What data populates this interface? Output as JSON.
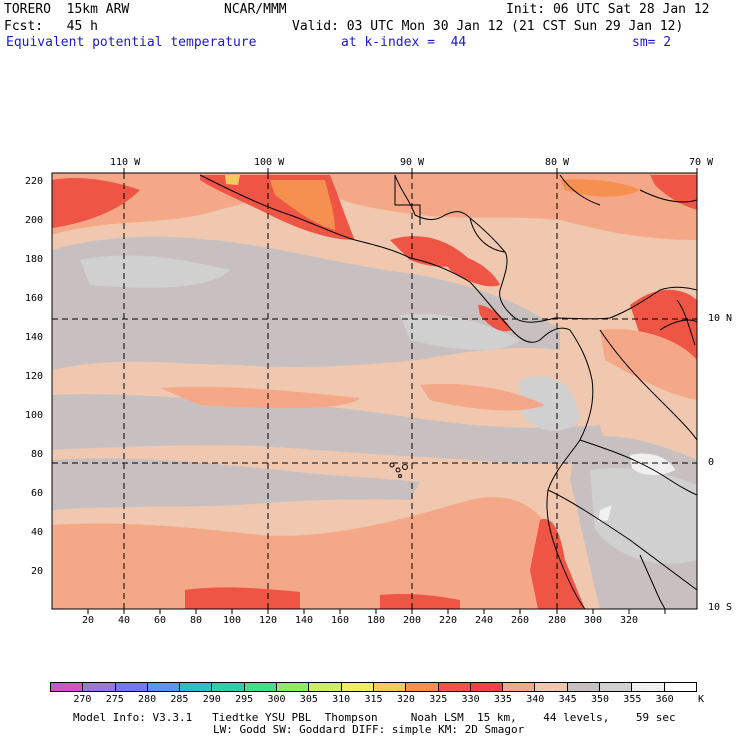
{
  "header": {
    "model": "TORERO  15km ARW",
    "org": "NCAR/MMM",
    "init": "Init: 06 UTC Sat 28 Jan 12",
    "fcst": "Fcst:   45 h",
    "valid": "Valid: 03 UTC Mon 30 Jan 12 (21 CST Sun 29 Jan 12)",
    "field": "Equivalent potential temperature",
    "level": "at k-index =  44",
    "smooth": "sm= 2"
  },
  "map": {
    "lon_labels": [
      "110 W",
      "100 W",
      "90 W",
      "80 W",
      "70 W"
    ],
    "lat_labels": [
      "10 N",
      "0",
      "10 S"
    ],
    "x_ticks": [
      "20",
      "40",
      "60",
      "80",
      "100",
      "120",
      "140",
      "160",
      "180",
      "200",
      "220",
      "240",
      "260",
      "280",
      "300",
      "320"
    ],
    "y_ticks": [
      "220",
      "200",
      "180",
      "160",
      "140",
      "120",
      "100",
      "80",
      "60",
      "40",
      "20"
    ]
  },
  "colorbar": {
    "labels": [
      "270",
      "275",
      "280",
      "285",
      "290",
      "295",
      "300",
      "305",
      "310",
      "315",
      "320",
      "325",
      "330",
      "335",
      "340",
      "345",
      "350",
      "355",
      "360"
    ],
    "unit": "K",
    "colors": [
      "#cc55cc",
      "#9977dd",
      "#7777ee",
      "#5599ee",
      "#33bbcc",
      "#33ccaa",
      "#44dd88",
      "#88ee66",
      "#ccee66",
      "#eeee66",
      "#f5c860",
      "#f59050",
      "#ee5544",
      "#ee4444",
      "#f5a888",
      "#f0c8b0",
      "#c8c0c0",
      "#d0d0d0",
      "#f0f0f0",
      "#ffffff"
    ]
  },
  "footer": {
    "line1": "Model Info: V3.3.1   Tiedtke YSU PBL  Thompson     Noah LSM  15 km,    44 levels,    59 sec",
    "line2": "LW: Godd SW: Goddard DIFF: simple KM: 2D Smagor"
  }
}
